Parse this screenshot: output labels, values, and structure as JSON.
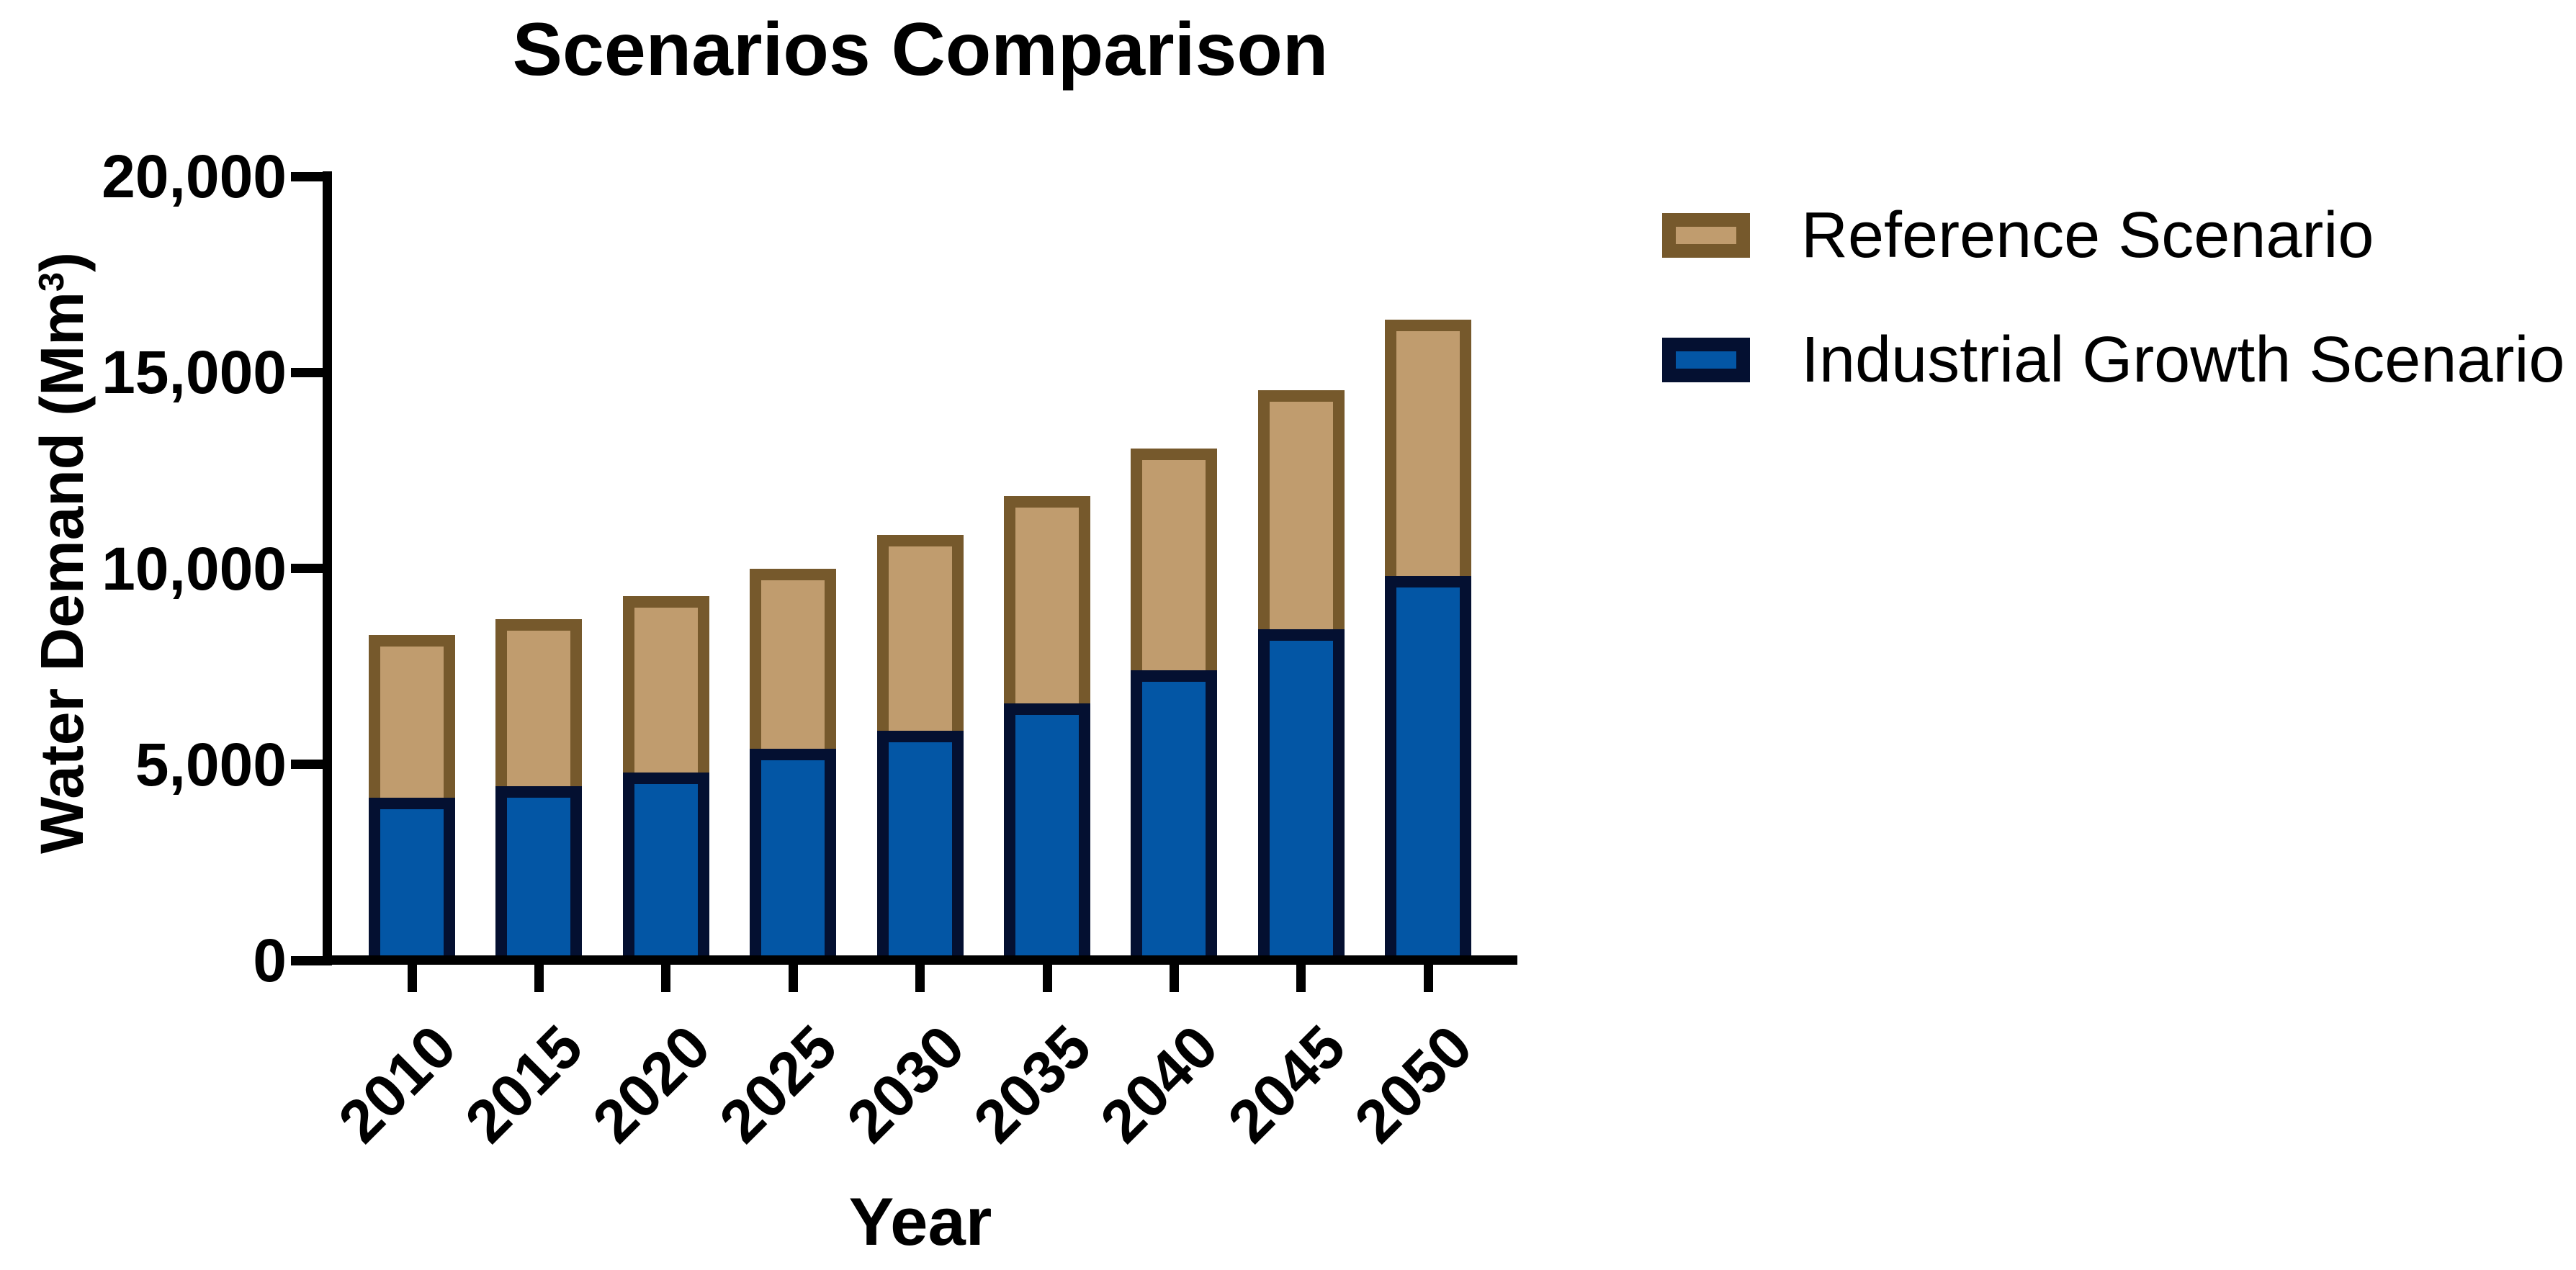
{
  "chart_data": {
    "type": "bar",
    "bar_mode": "overlapped",
    "title": "Scenarios Comparison",
    "xlabel": "Year",
    "ylabel": "Water Demand (Mm³)",
    "ylabel_prefix": "Water Demand (Mm",
    "ylabel_superscript": "3",
    "ylabel_suffix": ")",
    "categories": [
      "2010",
      "2015",
      "2020",
      "2025",
      "2030",
      "2035",
      "2040",
      "2045",
      "2050"
    ],
    "series": [
      {
        "name": "Reference Scenario",
        "values": [
          8300,
          8700,
          9300,
          10000,
          10850,
          11850,
          13050,
          14550,
          16350
        ],
        "fill_color": "#C09C6E",
        "border_color": "#76592C"
      },
      {
        "name": "Industrial Growth Scenario",
        "values": [
          4150,
          4450,
          4800,
          5400,
          5850,
          6550,
          7400,
          8450,
          9800
        ],
        "fill_color": "#0356A5",
        "border_color": "#041031"
      }
    ],
    "ylim": [
      0,
      20000
    ],
    "yticks": [
      {
        "value": 0,
        "label": "0"
      },
      {
        "value": 5000,
        "label": "5,000"
      },
      {
        "value": 10000,
        "label": "10,000"
      },
      {
        "value": 15000,
        "label": "15,000"
      },
      {
        "value": 20000,
        "label": "20,000"
      }
    ],
    "x_tick_rotation_deg": -45,
    "legend_position": "right",
    "grid": false,
    "axis_color": "#000000",
    "background_color": "#FFFFFF"
  }
}
